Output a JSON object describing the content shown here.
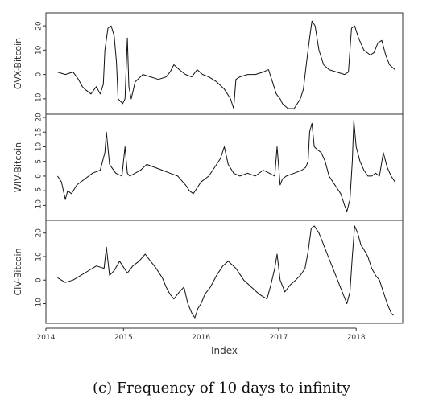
{
  "caption": "(c) Frequency of 10 days to infinity",
  "chart_data": {
    "type": "line",
    "xlabel": "Index",
    "x_ticks": [
      "2014",
      "2015",
      "2016",
      "2017",
      "2018"
    ],
    "xlim": [
      2014.0,
      2018.6
    ],
    "grid": false,
    "panels": [
      {
        "ylabel": "OVX-Bitcoin",
        "ylim": [
          -15,
          24
        ],
        "y_ticks": [
          -10,
          0,
          10,
          20
        ],
        "y_tick_labels": [
          "-10",
          "0",
          "10",
          "20"
        ],
        "series": [
          {
            "x": [
              2014.15,
              2014.25,
              2014.35,
              2014.42,
              2014.47,
              2014.5,
              2014.58,
              2014.65,
              2014.7,
              2014.74,
              2014.76,
              2014.8,
              2014.84,
              2014.88,
              2014.91,
              2014.93,
              2014.96,
              2014.99,
              2015.02,
              2015.05,
              2015.07,
              2015.1,
              2015.15,
              2015.25,
              2015.35,
              2015.45,
              2015.55,
              2015.6,
              2015.65,
              2015.72,
              2015.8,
              2015.88,
              2015.95,
              2016.02,
              2016.1,
              2016.2,
              2016.3,
              2016.38,
              2016.42,
              2016.45,
              2016.5,
              2016.6,
              2016.7,
              2016.8,
              2016.87,
              2016.93,
              2016.97,
              2017.02,
              2017.05,
              2017.12,
              2017.2,
              2017.28,
              2017.32,
              2017.36,
              2017.4,
              2017.43,
              2017.47,
              2017.52,
              2017.58,
              2017.65,
              2017.75,
              2017.85,
              2017.9,
              2017.94,
              2017.98,
              2018.03,
              2018.1,
              2018.18,
              2018.23,
              2018.28,
              2018.33,
              2018.38,
              2018.43,
              2018.5
            ],
            "y": [
              1,
              0,
              1,
              -2,
              -5,
              -6,
              -8,
              -5,
              -8,
              -4,
              10,
              19,
              20,
              16,
              5,
              -10,
              -11,
              -12,
              -10,
              15,
              -5,
              -10,
              -3,
              0,
              -1,
              -2,
              -1,
              1,
              4,
              2,
              0,
              -1,
              2,
              0,
              -1,
              -3,
              -6,
              -10,
              -14,
              -2,
              -1,
              0,
              0,
              1,
              2,
              -4,
              -8,
              -10,
              -12,
              -14,
              -14,
              -10,
              -6,
              5,
              15,
              22,
              20,
              10,
              4,
              2,
              1,
              0,
              1,
              19,
              20,
              15,
              10,
              8,
              9,
              13,
              14,
              8,
              4,
              2
            ]
          }
        ]
      },
      {
        "ylabel": "WIV-Bitcoin",
        "ylim": [
          -14,
          20
        ],
        "y_ticks": [
          -10,
          -5,
          0,
          5,
          10,
          15,
          20
        ],
        "y_tick_labels": [
          "-10",
          "-5",
          "0",
          "5",
          "10",
          "15",
          "20"
        ],
        "series": [
          {
            "x": [
              2014.15,
              2014.2,
              2014.25,
              2014.28,
              2014.33,
              2014.4,
              2014.5,
              2014.6,
              2014.7,
              2014.76,
              2014.78,
              2014.82,
              2014.9,
              2014.98,
              2015.02,
              2015.05,
              2015.08,
              2015.15,
              2015.22,
              2015.3,
              2015.4,
              2015.5,
              2015.6,
              2015.7,
              2015.8,
              2015.85,
              2015.9,
              2015.95,
              2016.0,
              2016.1,
              2016.15,
              2016.2,
              2016.25,
              2016.3,
              2016.35,
              2016.42,
              2016.5,
              2016.6,
              2016.7,
              2016.8,
              2016.88,
              2016.95,
              2016.98,
              2017.02,
              2017.05,
              2017.1,
              2017.2,
              2017.3,
              2017.35,
              2017.38,
              2017.4,
              2017.43,
              2017.46,
              2017.5,
              2017.55,
              2017.6,
              2017.65,
              2017.7,
              2017.75,
              2017.8,
              2017.85,
              2017.88,
              2017.92,
              2017.95,
              2017.97,
              2018.0,
              2018.05,
              2018.1,
              2018.15,
              2018.2,
              2018.25,
              2018.3,
              2018.35,
              2018.4,
              2018.45,
              2018.5
            ],
            "y": [
              0,
              -2,
              -8,
              -5,
              -6,
              -3,
              -1,
              1,
              2,
              8,
              15,
              4,
              1,
              0,
              10,
              1,
              0,
              1,
              2,
              4,
              3,
              2,
              1,
              0,
              -3,
              -5,
              -6,
              -4,
              -2,
              0,
              2,
              4,
              6,
              10,
              4,
              1,
              0,
              1,
              0,
              2,
              1,
              0,
              10,
              -3,
              -1,
              0,
              1,
              2,
              3,
              5,
              15,
              18,
              10,
              9,
              8,
              5,
              0,
              -2,
              -4,
              -6,
              -10,
              -12,
              -8,
              5,
              19,
              10,
              5,
              2,
              0,
              0,
              1,
              0,
              8,
              3,
              0,
              -2
            ]
          }
        ]
      },
      {
        "ylabel": "CIV-Bitcoin",
        "ylim": [
          -17,
          24
        ],
        "y_ticks": [
          -10,
          0,
          10,
          20
        ],
        "y_tick_labels": [
          "-10",
          "0",
          "10",
          "20"
        ],
        "series": [
          {
            "x": [
              2014.15,
              2014.25,
              2014.35,
              2014.45,
              2014.55,
              2014.65,
              2014.75,
              2014.78,
              2014.82,
              2014.88,
              2014.95,
              2015.05,
              2015.12,
              2015.2,
              2015.28,
              2015.35,
              2015.42,
              2015.5,
              2015.55,
              2015.6,
              2015.65,
              2015.72,
              2015.78,
              2015.83,
              2015.88,
              2015.92,
              2015.96,
              2016.0,
              2016.05,
              2016.12,
              2016.2,
              2016.28,
              2016.35,
              2016.45,
              2016.55,
              2016.65,
              2016.75,
              2016.85,
              2016.9,
              2016.95,
              2016.98,
              2017.02,
              2017.08,
              2017.15,
              2017.22,
              2017.28,
              2017.34,
              2017.38,
              2017.42,
              2017.46,
              2017.52,
              2017.58,
              2017.64,
              2017.7,
              2017.76,
              2017.82,
              2017.88,
              2017.92,
              2017.95,
              2017.98,
              2018.02,
              2018.06,
              2018.1,
              2018.15,
              2018.2,
              2018.25,
              2018.3,
              2018.35,
              2018.4,
              2018.45,
              2018.48
            ],
            "y": [
              1,
              -1,
              0,
              2,
              4,
              6,
              5,
              14,
              2,
              4,
              8,
              3,
              6,
              8,
              11,
              8,
              5,
              1,
              -3,
              -6,
              -8,
              -5,
              -3,
              -10,
              -14,
              -16,
              -12,
              -10,
              -6,
              -3,
              2,
              6,
              8,
              5,
              0,
              -3,
              -6,
              -8,
              -2,
              5,
              11,
              0,
              -5,
              -2,
              0,
              2,
              5,
              12,
              22,
              23,
              20,
              15,
              10,
              5,
              0,
              -5,
              -10,
              -5,
              10,
              23,
              20,
              15,
              13,
              10,
              5,
              2,
              0,
              -5,
              -10,
              -14,
              -15
            ]
          }
        ]
      }
    ]
  }
}
